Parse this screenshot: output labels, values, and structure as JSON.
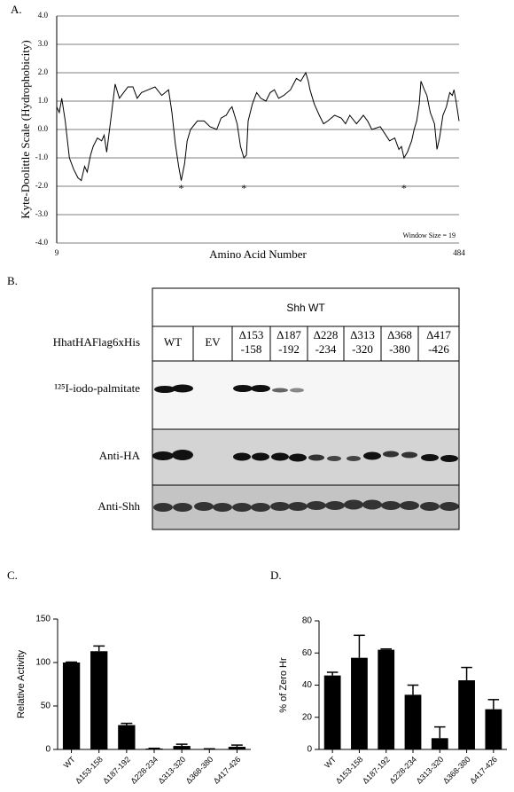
{
  "chart_data": [
    {
      "type": "line",
      "panel_label": "A.",
      "ylabel": "Kyte-Doolittle Scale (Hydrophobicity)",
      "xlabel": "Amino Acid Number",
      "note": "Window Size = 19",
      "x": [
        9,
        12,
        15,
        19,
        24,
        29,
        34,
        38,
        42,
        45,
        49,
        52,
        57,
        62,
        65,
        68,
        73,
        78,
        83,
        88,
        93,
        99,
        104,
        109,
        117,
        125,
        133,
        141,
        145,
        149,
        153,
        156,
        160,
        163,
        167,
        175,
        183,
        190,
        198,
        203,
        209,
        213,
        216,
        222,
        226,
        230,
        233,
        235,
        240,
        245,
        250,
        256,
        261,
        266,
        271,
        277,
        285,
        292,
        297,
        303,
        306,
        308,
        313,
        319,
        324,
        329,
        337,
        345,
        350,
        355,
        363,
        371,
        376,
        381,
        391,
        402,
        408,
        413,
        416,
        419,
        423,
        428,
        431,
        434,
        437,
        439,
        443,
        446,
        450,
        455,
        458,
        461,
        465,
        469,
        473,
        476,
        478,
        481,
        484
      ],
      "values": [
        0.8,
        0.6,
        1.1,
        0.3,
        -1.0,
        -1.4,
        -1.7,
        -1.8,
        -1.3,
        -1.5,
        -0.9,
        -0.6,
        -0.3,
        -0.4,
        -0.2,
        -0.8,
        0.4,
        1.6,
        1.1,
        1.3,
        1.5,
        1.5,
        1.1,
        1.3,
        1.4,
        1.5,
        1.2,
        1.4,
        0.6,
        -0.5,
        -1.3,
        -1.8,
        -1.2,
        -0.4,
        0.0,
        0.3,
        0.3,
        0.1,
        0.0,
        0.4,
        0.5,
        0.7,
        0.8,
        0.2,
        -0.6,
        -1.0,
        -0.9,
        0.3,
        0.9,
        1.3,
        1.1,
        1.0,
        1.3,
        1.4,
        1.1,
        1.2,
        1.4,
        1.8,
        1.7,
        2.0,
        1.7,
        1.4,
        0.9,
        0.5,
        0.2,
        0.3,
        0.5,
        0.4,
        0.2,
        0.5,
        0.2,
        0.5,
        0.3,
        0.0,
        0.1,
        -0.4,
        -0.3,
        -0.7,
        -0.6,
        -1.0,
        -0.8,
        -0.4,
        0.0,
        0.3,
        0.9,
        1.7,
        1.4,
        1.2,
        0.6,
        0.2,
        -0.7,
        -0.3,
        0.5,
        0.8,
        1.3,
        1.2,
        1.4,
        0.9,
        0.3
      ],
      "color": "#000000",
      "xlim": [
        9,
        484
      ],
      "xticks": [
        9,
        484
      ],
      "ylim": [
        -4,
        4
      ],
      "yticks": [
        {
          "value": -4,
          "label": "-4.0"
        },
        {
          "value": -3,
          "label": "-3.0"
        },
        {
          "value": -2,
          "label": "-2.0"
        },
        {
          "value": -1,
          "label": "-1.0"
        },
        {
          "value": 0,
          "label": "0.0"
        },
        {
          "value": 1,
          "label": "1.0"
        },
        {
          "value": 2,
          "label": "2.0"
        },
        {
          "value": 3,
          "label": "3.0"
        },
        {
          "value": 4,
          "label": "4.0"
        }
      ],
      "grid": true,
      "annotations": [
        {
          "text": "*",
          "x": 156,
          "y": -2.1
        },
        {
          "text": "*",
          "x": 230,
          "y": -2.1
        },
        {
          "text": "*",
          "x": 419,
          "y": -2.1
        }
      ]
    },
    {
      "type": "bar",
      "panel_label": "C.",
      "ylabel": "Relative Activity",
      "categories": [
        "WT",
        "Δ153-158",
        "Δ187-192",
        "Δ228-234",
        "Δ313-320",
        "Δ368-380",
        "Δ417-426"
      ],
      "values": [
        100,
        113,
        28,
        1,
        4,
        0.5,
        3
      ],
      "errors": [
        0.5,
        6,
        2,
        0.3,
        2,
        0.2,
        2
      ],
      "color": "#000000",
      "ylim": [
        0,
        150
      ],
      "yticks": [
        0,
        50,
        100,
        150
      ],
      "grid": false
    },
    {
      "type": "bar",
      "panel_label": "D.",
      "ylabel": "% of Zero Hr",
      "categories": [
        "WT",
        "Δ153-158",
        "Δ187-192",
        "Δ228-234",
        "Δ313-320",
        "Δ368-380",
        "Δ417-426"
      ],
      "values": [
        46,
        57,
        62,
        34,
        7,
        43,
        25
      ],
      "errors": [
        2,
        14,
        0.5,
        6,
        7,
        8,
        6
      ],
      "color": "#000000",
      "ylim": [
        0,
        80
      ],
      "yticks": [
        0,
        20,
        40,
        60,
        80
      ],
      "grid": false
    }
  ],
  "blot": {
    "panel_label": "B.",
    "header": "Shh WT",
    "row_header": "HhatHAFlag6xHis",
    "columns": [
      [
        "WT"
      ],
      [
        "EV"
      ],
      [
        "Δ153",
        "-158"
      ],
      [
        "Δ187",
        "-192"
      ],
      [
        "Δ228",
        "-234"
      ],
      [
        "Δ313",
        "-320"
      ],
      [
        "Δ368",
        "-380"
      ],
      [
        "Δ417",
        "-426"
      ]
    ],
    "rows": [
      "¹²⁵I-iodo-palmitate",
      "Anti-HA",
      "Anti-Shh"
    ]
  }
}
